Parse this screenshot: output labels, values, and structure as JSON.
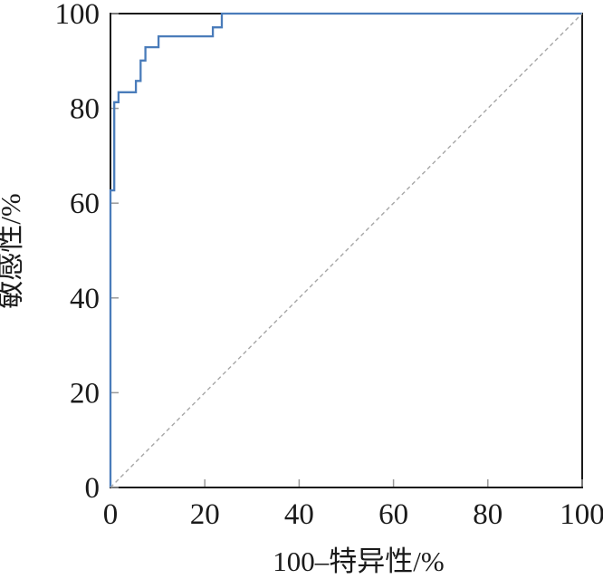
{
  "chart_data": {
    "type": "line",
    "subtype": "roc-step-curve",
    "title": "",
    "xlabel": "100–特异性/%",
    "ylabel": "敏感性/%",
    "xlim": [
      0,
      100
    ],
    "ylim": [
      0,
      100
    ],
    "xticks": [
      0,
      20,
      40,
      60,
      80,
      100
    ],
    "yticks": [
      0,
      20,
      40,
      60,
      80,
      100
    ],
    "grid": false,
    "legend": "none",
    "colors": {
      "curve": "#4a7cba",
      "diagonal": "#a6a6a6",
      "axis": "#1a1a1a",
      "tick": "#999999",
      "background": "#ffffff"
    },
    "series": [
      {
        "name": "roc-curve",
        "style": "solid-step",
        "color": "#4a7cba",
        "points": [
          [
            0,
            0
          ],
          [
            0,
            62.7
          ],
          [
            0.8,
            62.7
          ],
          [
            0.8,
            81.3
          ],
          [
            1.7,
            81.3
          ],
          [
            1.7,
            83.4
          ],
          [
            5.4,
            83.4
          ],
          [
            5.4,
            85.8
          ],
          [
            6.4,
            85.8
          ],
          [
            6.4,
            90.1
          ],
          [
            7.4,
            90.1
          ],
          [
            7.4,
            92.9
          ],
          [
            10.2,
            92.9
          ],
          [
            10.2,
            95.2
          ],
          [
            21.7,
            95.2
          ],
          [
            21.7,
            97.1
          ],
          [
            23.6,
            97.1
          ],
          [
            23.6,
            100
          ],
          [
            100,
            100
          ]
        ]
      },
      {
        "name": "reference-diagonal",
        "style": "dashed",
        "color": "#a6a6a6",
        "points": [
          [
            0,
            0
          ],
          [
            100,
            100
          ]
        ]
      }
    ]
  }
}
